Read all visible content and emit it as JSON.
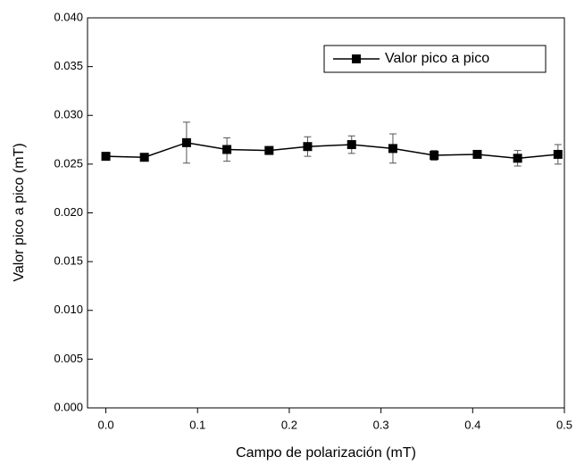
{
  "chart_data": {
    "type": "line",
    "xlabel": "Campo de polarización (mT)",
    "ylabel": "Valor pico a pico (mT)",
    "x": [
      0,
      0.042,
      0.088,
      0.132,
      0.178,
      0.22,
      0.268,
      0.313,
      0.358,
      0.405,
      0.449,
      0.493
    ],
    "series": [
      {
        "name": "Valor pico a pico",
        "color": "#000000",
        "values": [
          0.0258,
          0.0257,
          0.0272,
          0.0265,
          0.0264,
          0.0268,
          0.027,
          0.0266,
          0.0259,
          0.026,
          0.0256,
          0.026
        ],
        "errors": [
          0.0002,
          0.0002,
          0.0021,
          0.0012,
          0.0003,
          0.001,
          0.0009,
          0.0015,
          0.0005,
          0.0003,
          0.0008,
          0.001
        ]
      }
    ],
    "xlim": [
      -0.02,
      0.5
    ],
    "xticks": [
      {
        "value": 0,
        "label": "0.0"
      },
      0.1,
      0.2,
      0.3,
      0.4,
      0.5
    ],
    "ylim": [
      0,
      0.04
    ],
    "yticks": [
      {
        "value": 0,
        "label": "0.000"
      },
      {
        "value": 0.005,
        "label": "0.005"
      },
      {
        "value": 0.01,
        "label": "0.010"
      },
      {
        "value": 0.015,
        "label": "0.015"
      },
      {
        "value": 0.02,
        "label": "0.020"
      },
      {
        "value": 0.025,
        "label": "0.025"
      },
      {
        "value": 0.03,
        "label": "0.030"
      },
      {
        "value": 0.035,
        "label": "0.035"
      },
      {
        "value": 0.04,
        "label": "0.040"
      }
    ],
    "legend": "upper right",
    "grid": false
  }
}
